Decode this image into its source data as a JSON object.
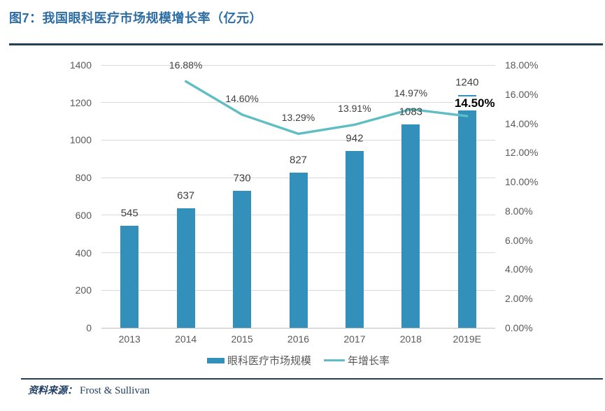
{
  "figure": {
    "title": "图7：我国眼科医疗市场规模增长率（亿元）"
  },
  "legend": {
    "bar_label": "眼科医疗市场规模",
    "line_label": "年增长率"
  },
  "source": {
    "label": "资料来源：",
    "value": "Frost & Sullivan"
  },
  "colors": {
    "title": "#2E6DA4",
    "divider": "#233F54",
    "bar": "#3390BA",
    "line": "#5FBEC4",
    "grid": "#D9D9D9",
    "axis_line": "#BFBFBF",
    "tick_text": "#595959",
    "data_label": "#404040",
    "emphasis_label": "#000000",
    "source_text": "#1F3E66"
  },
  "chart_data": {
    "type": "combo-bar-line",
    "title": "图7：我国眼科医疗市场规模增长率（亿元）",
    "categories": [
      "2013",
      "2014",
      "2015",
      "2016",
      "2017",
      "2018",
      "2019E"
    ],
    "series": [
      {
        "name": "眼科医疗市场规模",
        "type": "bar",
        "axis": "left",
        "values": [
          545,
          637,
          730,
          827,
          942,
          1083,
          1240
        ],
        "labels": [
          "545",
          "637",
          "730",
          "827",
          "942",
          "1083",
          "1240"
        ]
      },
      {
        "name": "年增长率",
        "type": "line",
        "axis": "right",
        "values": [
          null,
          16.88,
          14.6,
          13.29,
          13.91,
          14.97,
          14.5
        ],
        "labels": [
          null,
          "16.88%",
          "14.60%",
          "13.29%",
          "13.91%",
          "14.97%",
          "14.50%"
        ],
        "emphasized_index": 6
      }
    ],
    "left_axis": {
      "min": 0,
      "max": 1400,
      "step": 200,
      "ticks": [
        "0",
        "200",
        "400",
        "600",
        "800",
        "1000",
        "1200",
        "1400"
      ]
    },
    "right_axis": {
      "min": 0,
      "max": 18,
      "step": 2,
      "ticks": [
        "0.00%",
        "2.00%",
        "4.00%",
        "6.00%",
        "8.00%",
        "10.00%",
        "12.00%",
        "14.00%",
        "16.00%",
        "18.00%"
      ]
    },
    "grid": true,
    "legend_position": "bottom",
    "xlabel": "",
    "ylabel_left": "",
    "ylabel_right": ""
  }
}
